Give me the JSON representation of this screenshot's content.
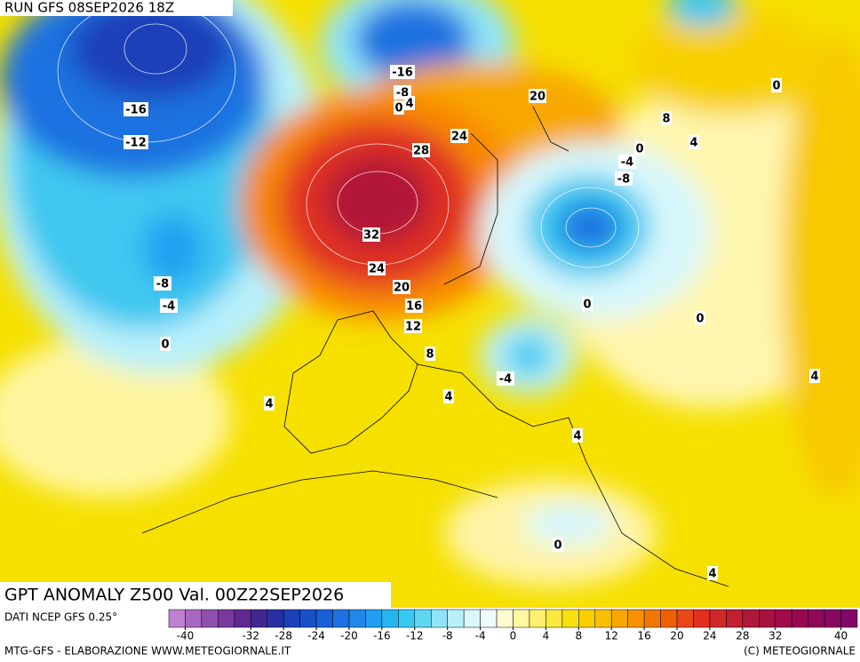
{
  "header": {
    "run": "RUN GFS 08SEP2026 18Z"
  },
  "map": {
    "title": "GPT ANOMALY Z500 Val. 00Z22SEP2026",
    "contour_labels": [
      "-16",
      "-12",
      "-8",
      "-4",
      "0",
      "4",
      "-16",
      "-8",
      "0",
      "4",
      "20",
      "8",
      "0",
      "24",
      "28",
      "0",
      "4",
      "-4",
      "-8",
      "32",
      "24",
      "20",
      "16",
      "12",
      "8",
      "0",
      "0",
      "4",
      "-4",
      "4",
      "4",
      "0",
      "4"
    ]
  },
  "colorbar": {
    "source": "DATI NCEP GFS 0.25°",
    "lim": [
      -42,
      42
    ],
    "ticks": [
      -40,
      -32,
      -28,
      -24,
      -20,
      -16,
      -12,
      -8,
      -4,
      0,
      4,
      8,
      12,
      16,
      20,
      24,
      28,
      32,
      40
    ],
    "colors": [
      "#c080d0",
      "#a868c0",
      "#9050b0",
      "#7838a0",
      "#602890",
      "#402890",
      "#2830a0",
      "#1c40b8",
      "#1850c8",
      "#1860d8",
      "#1c72e0",
      "#2088e8",
      "#20a0f0",
      "#28b4f0",
      "#38c8f0",
      "#60d8f4",
      "#90e4f8",
      "#b8f0fa",
      "#d8f8fc",
      "#f0fcfc",
      "#fffbd0",
      "#fff6a0",
      "#fff070",
      "#fce840",
      "#f8e010",
      "#f8d000",
      "#f8c000",
      "#f8a800",
      "#f89000",
      "#f07800",
      "#f06000",
      "#e84818",
      "#e03020",
      "#d02828",
      "#c02030",
      "#b01838",
      "#a81040",
      "#a00c48",
      "#980850",
      "#900858",
      "#880860",
      "#800868"
    ]
  },
  "footer": {
    "left": "MTG-GFS - ELABORAZIONE WWW.METEOGIORNALE.IT",
    "right": "(C) METEOGIORNALE"
  }
}
